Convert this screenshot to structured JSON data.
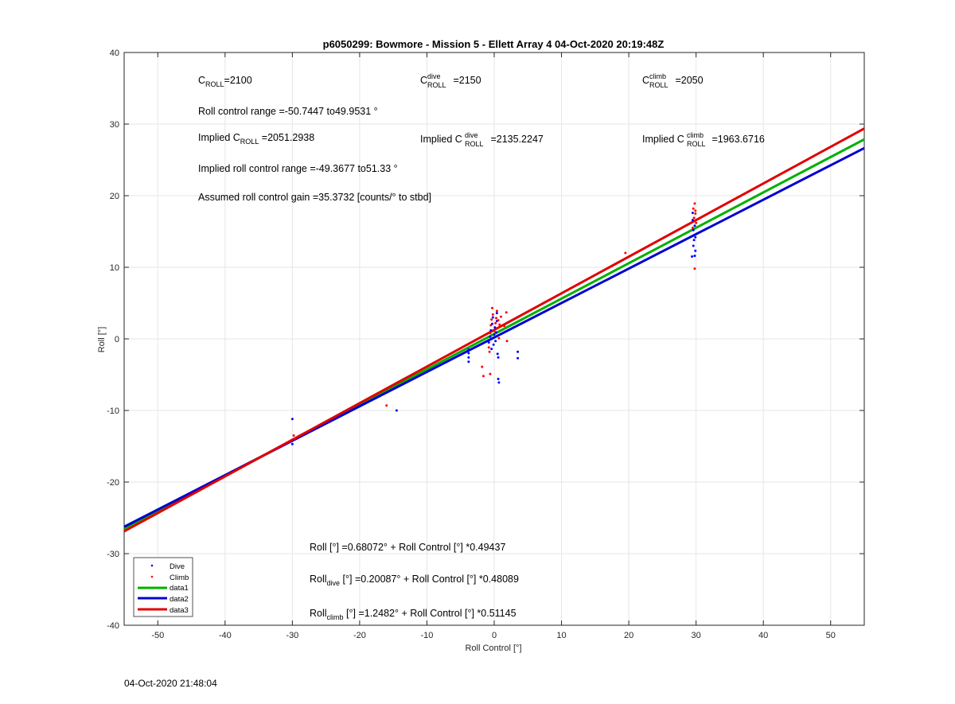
{
  "chart_data": {
    "type": "scatter",
    "title": "p6050299: Bowmore - Mission 5 - Ellett Array 4 04-Oct-2020 20:19:48Z",
    "xlabel": "Roll Control [°]",
    "ylabel": "Roll [°]",
    "xlim": [
      -55,
      55
    ],
    "ylim": [
      -40,
      40
    ],
    "xticks": [
      -50,
      -40,
      -30,
      -20,
      -10,
      0,
      10,
      20,
      30,
      40,
      50
    ],
    "yticks": [
      -40,
      -30,
      -20,
      -10,
      0,
      10,
      20,
      30,
      40
    ],
    "grid": true,
    "legend_placement": "bottom-left",
    "legend": [
      "Dive",
      "Climb",
      "data1",
      "data2",
      "data3"
    ],
    "colors": {
      "dive": "#0000ff",
      "climb": "#ff0000",
      "data1": "#00aa00",
      "data2": "#0000cc",
      "data3": "#dd0000"
    },
    "lines": [
      {
        "name": "data1",
        "intercept": 0.68072,
        "slope": 0.49437,
        "color": "#00b000"
      },
      {
        "name": "data2",
        "intercept": 0.20087,
        "slope": 0.48089,
        "color": "#0000d0"
      },
      {
        "name": "data3",
        "intercept": 1.2482,
        "slope": 0.51145,
        "color": "#e00000"
      }
    ],
    "series": [
      {
        "name": "Dive",
        "marker_color": "#0000ff",
        "points": [
          [
            -30,
            -11.2
          ],
          [
            -30,
            -14.7
          ],
          [
            -14.5,
            -10.0
          ],
          [
            -3.8,
            -1.5
          ],
          [
            -3.8,
            -2.0
          ],
          [
            -3.8,
            -2.6
          ],
          [
            -3.8,
            -3.2
          ],
          [
            -0.8,
            -0.5
          ],
          [
            -0.6,
            0.3
          ],
          [
            -0.5,
            1.2
          ],
          [
            -0.4,
            -1.4
          ],
          [
            -0.3,
            2.1
          ],
          [
            -0.2,
            3.0
          ],
          [
            -0.1,
            -0.8
          ],
          [
            0.0,
            0.6
          ],
          [
            0.1,
            1.6
          ],
          [
            0.2,
            -0.3
          ],
          [
            0.3,
            0.9
          ],
          [
            0.4,
            2.5
          ],
          [
            0.5,
            -2.1
          ],
          [
            0.6,
            -2.6
          ],
          [
            0.6,
            -5.6
          ],
          [
            0.7,
            -6.1
          ],
          [
            0.4,
            3.6
          ],
          [
            -0.6,
            -0.1
          ],
          [
            3.5,
            -1.8
          ],
          [
            3.5,
            -2.7
          ],
          [
            29.5,
            17.6
          ],
          [
            29.6,
            15.2
          ],
          [
            29.7,
            13.8
          ],
          [
            29.8,
            11.6
          ],
          [
            29.9,
            14.2
          ],
          [
            29.5,
            16.6
          ],
          [
            29.9,
            12.3
          ],
          [
            29.4,
            11.5
          ],
          [
            29.8,
            15.8
          ],
          [
            29.6,
            13.0
          ]
        ]
      },
      {
        "name": "Climb",
        "marker_color": "#ff0000",
        "points": [
          [
            -29.8,
            -13.5
          ],
          [
            -29.6,
            -13.9
          ],
          [
            -16,
            -9.3
          ],
          [
            -1.8,
            -3.9
          ],
          [
            -1.6,
            -5.2
          ],
          [
            -0.8,
            -1.2
          ],
          [
            -0.7,
            -1.8
          ],
          [
            -0.6,
            0.8
          ],
          [
            -0.5,
            1.9
          ],
          [
            -0.4,
            2.7
          ],
          [
            -0.3,
            4.3
          ],
          [
            -0.2,
            3.4
          ],
          [
            0.0,
            1.1
          ],
          [
            0.2,
            2.2
          ],
          [
            0.3,
            2.9
          ],
          [
            0.4,
            3.9
          ],
          [
            0.5,
            1.5
          ],
          [
            0.6,
            2.6
          ],
          [
            0.8,
            2.0
          ],
          [
            1.0,
            3.1
          ],
          [
            1.5,
            1.8
          ],
          [
            1.8,
            3.7
          ],
          [
            1.9,
            -0.3
          ],
          [
            -0.6,
            -4.9
          ],
          [
            0.7,
            0.1
          ],
          [
            19.5,
            12.0
          ],
          [
            29.6,
            18.2
          ],
          [
            29.7,
            16.9
          ],
          [
            29.8,
            18.9
          ],
          [
            29.9,
            17.5
          ],
          [
            30.0,
            16.2
          ],
          [
            29.8,
            9.8
          ],
          [
            29.5,
            15.5
          ],
          [
            29.9,
            17.9
          ]
        ]
      }
    ],
    "annotations": {
      "c_roll": {
        "base": "C",
        "sub": "ROLL",
        "value": "=2100"
      },
      "c_roll_dive": {
        "base": "C",
        "sup": "dive",
        "sub": "ROLL",
        "value": " =2150"
      },
      "c_roll_climb": {
        "base": "C",
        "sup": "climb",
        "sub": "ROLL",
        "value": " =2050"
      },
      "roll_range": "Roll control range =-50.7447 to49.9531 °",
      "implied_c_roll": {
        "prefix": "Implied C",
        "sub": "ROLL",
        "value": " =2051.2938"
      },
      "implied_c_roll_dive": {
        "prefix": "Implied C",
        "sup": "dive",
        "sub": "ROLL",
        "value": " =2135.2247"
      },
      "implied_c_roll_climb": {
        "prefix": "Implied C",
        "sup": "climb",
        "sub": "ROLL",
        "value": " =1963.6716"
      },
      "implied_range": "Implied roll control range =-49.3677 to51.33 °",
      "gain": "Assumed roll control gain =35.3732 [counts/° to stbd]",
      "fit_all": "Roll [°] =0.68072° + Roll Control [°] *0.49437",
      "fit_dive": {
        "base": "Roll",
        "sub": "dive",
        "rest": " [°] =0.20087° + Roll Control [°] *0.48089"
      },
      "fit_climb": {
        "base": "Roll",
        "sub": "climb",
        "rest": " [°] =1.2482° + Roll Control [°] *0.51145"
      }
    }
  },
  "footer": {
    "timestamp": "04-Oct-2020 21:48:04"
  }
}
